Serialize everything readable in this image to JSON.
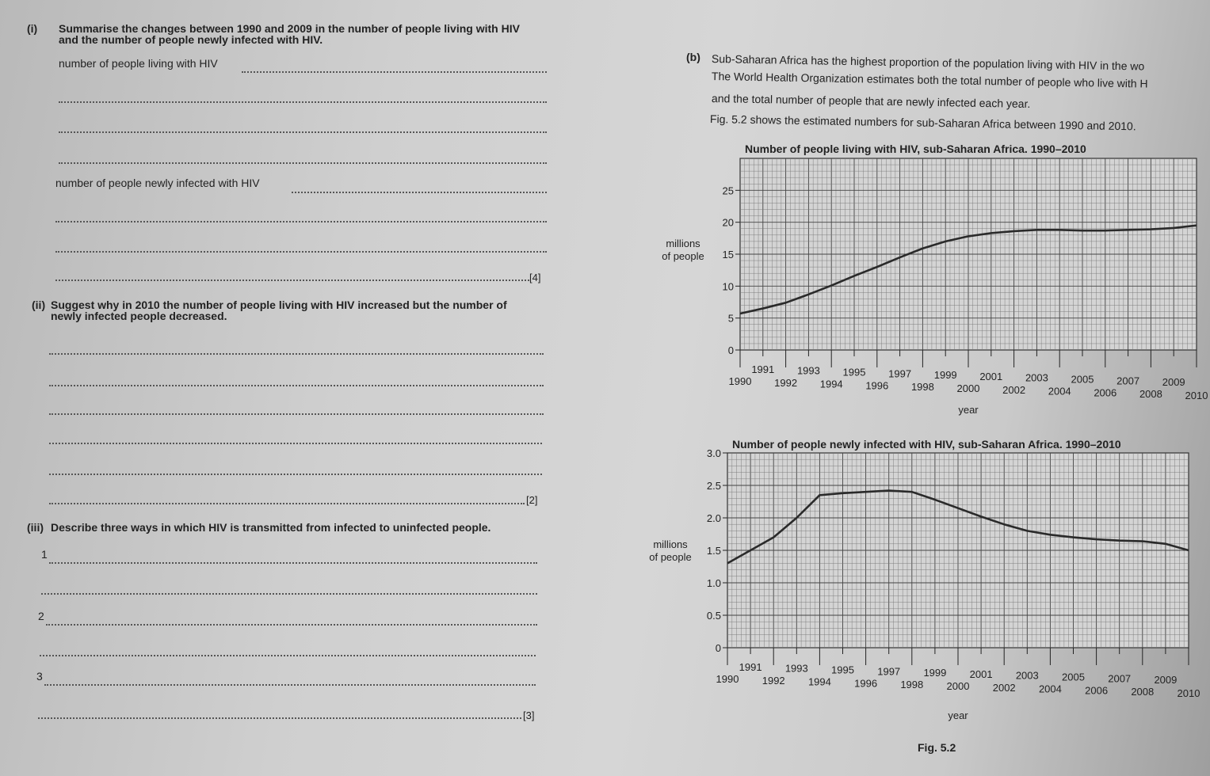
{
  "question_a": {
    "part_i": {
      "label": "(i)",
      "text_line1": "Summarise the changes between 1990 and 2009 in the number of people living with HIV",
      "text_line2": "and the number of people newly infected with HIV.",
      "prompt_living": "number of people living with HIV",
      "prompt_new": "number of people newly infected with HIV",
      "marks": "[4]"
    },
    "part_ii": {
      "label": "(ii)",
      "text_line1": "Suggest why in 2010 the number of people living with HIV increased but the number of",
      "text_line2": "newly infected people decreased.",
      "marks": "[2]"
    },
    "part_iii": {
      "label": "(iii)",
      "text": "Describe three ways in which HIV is transmitted from infected to uninfected people.",
      "items": [
        "1",
        "2",
        "3"
      ],
      "marks": "[3]"
    }
  },
  "question_b": {
    "label": "(b)",
    "line1": "Sub-Saharan Africa has the highest proportion of the population living with HIV in the wo",
    "line2": "The World Health Organization estimates both the total number of people who live with H",
    "line3": "and the total number of people that are newly infected each year.",
    "line4": "Fig. 5.2 shows the estimated numbers for sub-Saharan Africa between 1990 and 2010."
  },
  "figure_caption": "Fig. 5.2",
  "chart_data": [
    {
      "type": "line",
      "title": "Number of people living with HIV, sub-Saharan Africa. 1990–2010",
      "xlabel": "year",
      "ylabel": "millions of people",
      "x": [
        1990,
        1991,
        1992,
        1993,
        1994,
        1995,
        1996,
        1997,
        1998,
        1999,
        2000,
        2001,
        2002,
        2003,
        2004,
        2005,
        2006,
        2007,
        2008,
        2009,
        2010
      ],
      "values": [
        5.7,
        6.5,
        7.4,
        8.7,
        10.1,
        11.6,
        13.0,
        14.5,
        15.9,
        17.0,
        17.8,
        18.3,
        18.6,
        18.8,
        18.8,
        18.7,
        18.7,
        18.8,
        18.9,
        19.1,
        19.5
      ],
      "xlim": [
        1990,
        2010
      ],
      "ylim": [
        0,
        30
      ],
      "yticks": [
        "0",
        "5",
        "10",
        "15",
        "20",
        "25"
      ],
      "xticks": [
        "1990",
        "1991",
        "1992",
        "1993",
        "1994",
        "1995",
        "1996",
        "1997",
        "1998",
        "1999",
        "2000",
        "2001",
        "2002",
        "2003",
        "2004",
        "2005",
        "2006",
        "2007",
        "2008",
        "2009",
        "2010"
      ],
      "grid": true
    },
    {
      "type": "line",
      "title": "Number of people newly infected with HIV, sub-Saharan Africa. 1990–2010",
      "xlabel": "year",
      "ylabel": "millions of people",
      "x": [
        1990,
        1991,
        1992,
        1993,
        1994,
        1995,
        1996,
        1997,
        1998,
        1999,
        2000,
        2001,
        2002,
        2003,
        2004,
        2005,
        2006,
        2007,
        2008,
        2009,
        2010
      ],
      "values": [
        1.3,
        1.5,
        1.7,
        2.0,
        2.35,
        2.38,
        2.4,
        2.42,
        2.4,
        2.28,
        2.15,
        2.02,
        1.9,
        1.8,
        1.74,
        1.7,
        1.67,
        1.65,
        1.64,
        1.6,
        1.5
      ],
      "xlim": [
        1990,
        2010
      ],
      "ylim": [
        0,
        3.0
      ],
      "yticks": [
        "0",
        "0.5",
        "1.0",
        "1.5",
        "2.0",
        "2.5",
        "3.0"
      ],
      "xticks": [
        "1990",
        "1991",
        "1992",
        "1993",
        "1994",
        "1995",
        "1996",
        "1997",
        "1998",
        "1999",
        "2000",
        "2001",
        "2002",
        "2003",
        "2004",
        "2005",
        "2006",
        "2007",
        "2008",
        "2009",
        "2010"
      ],
      "grid": true
    }
  ]
}
